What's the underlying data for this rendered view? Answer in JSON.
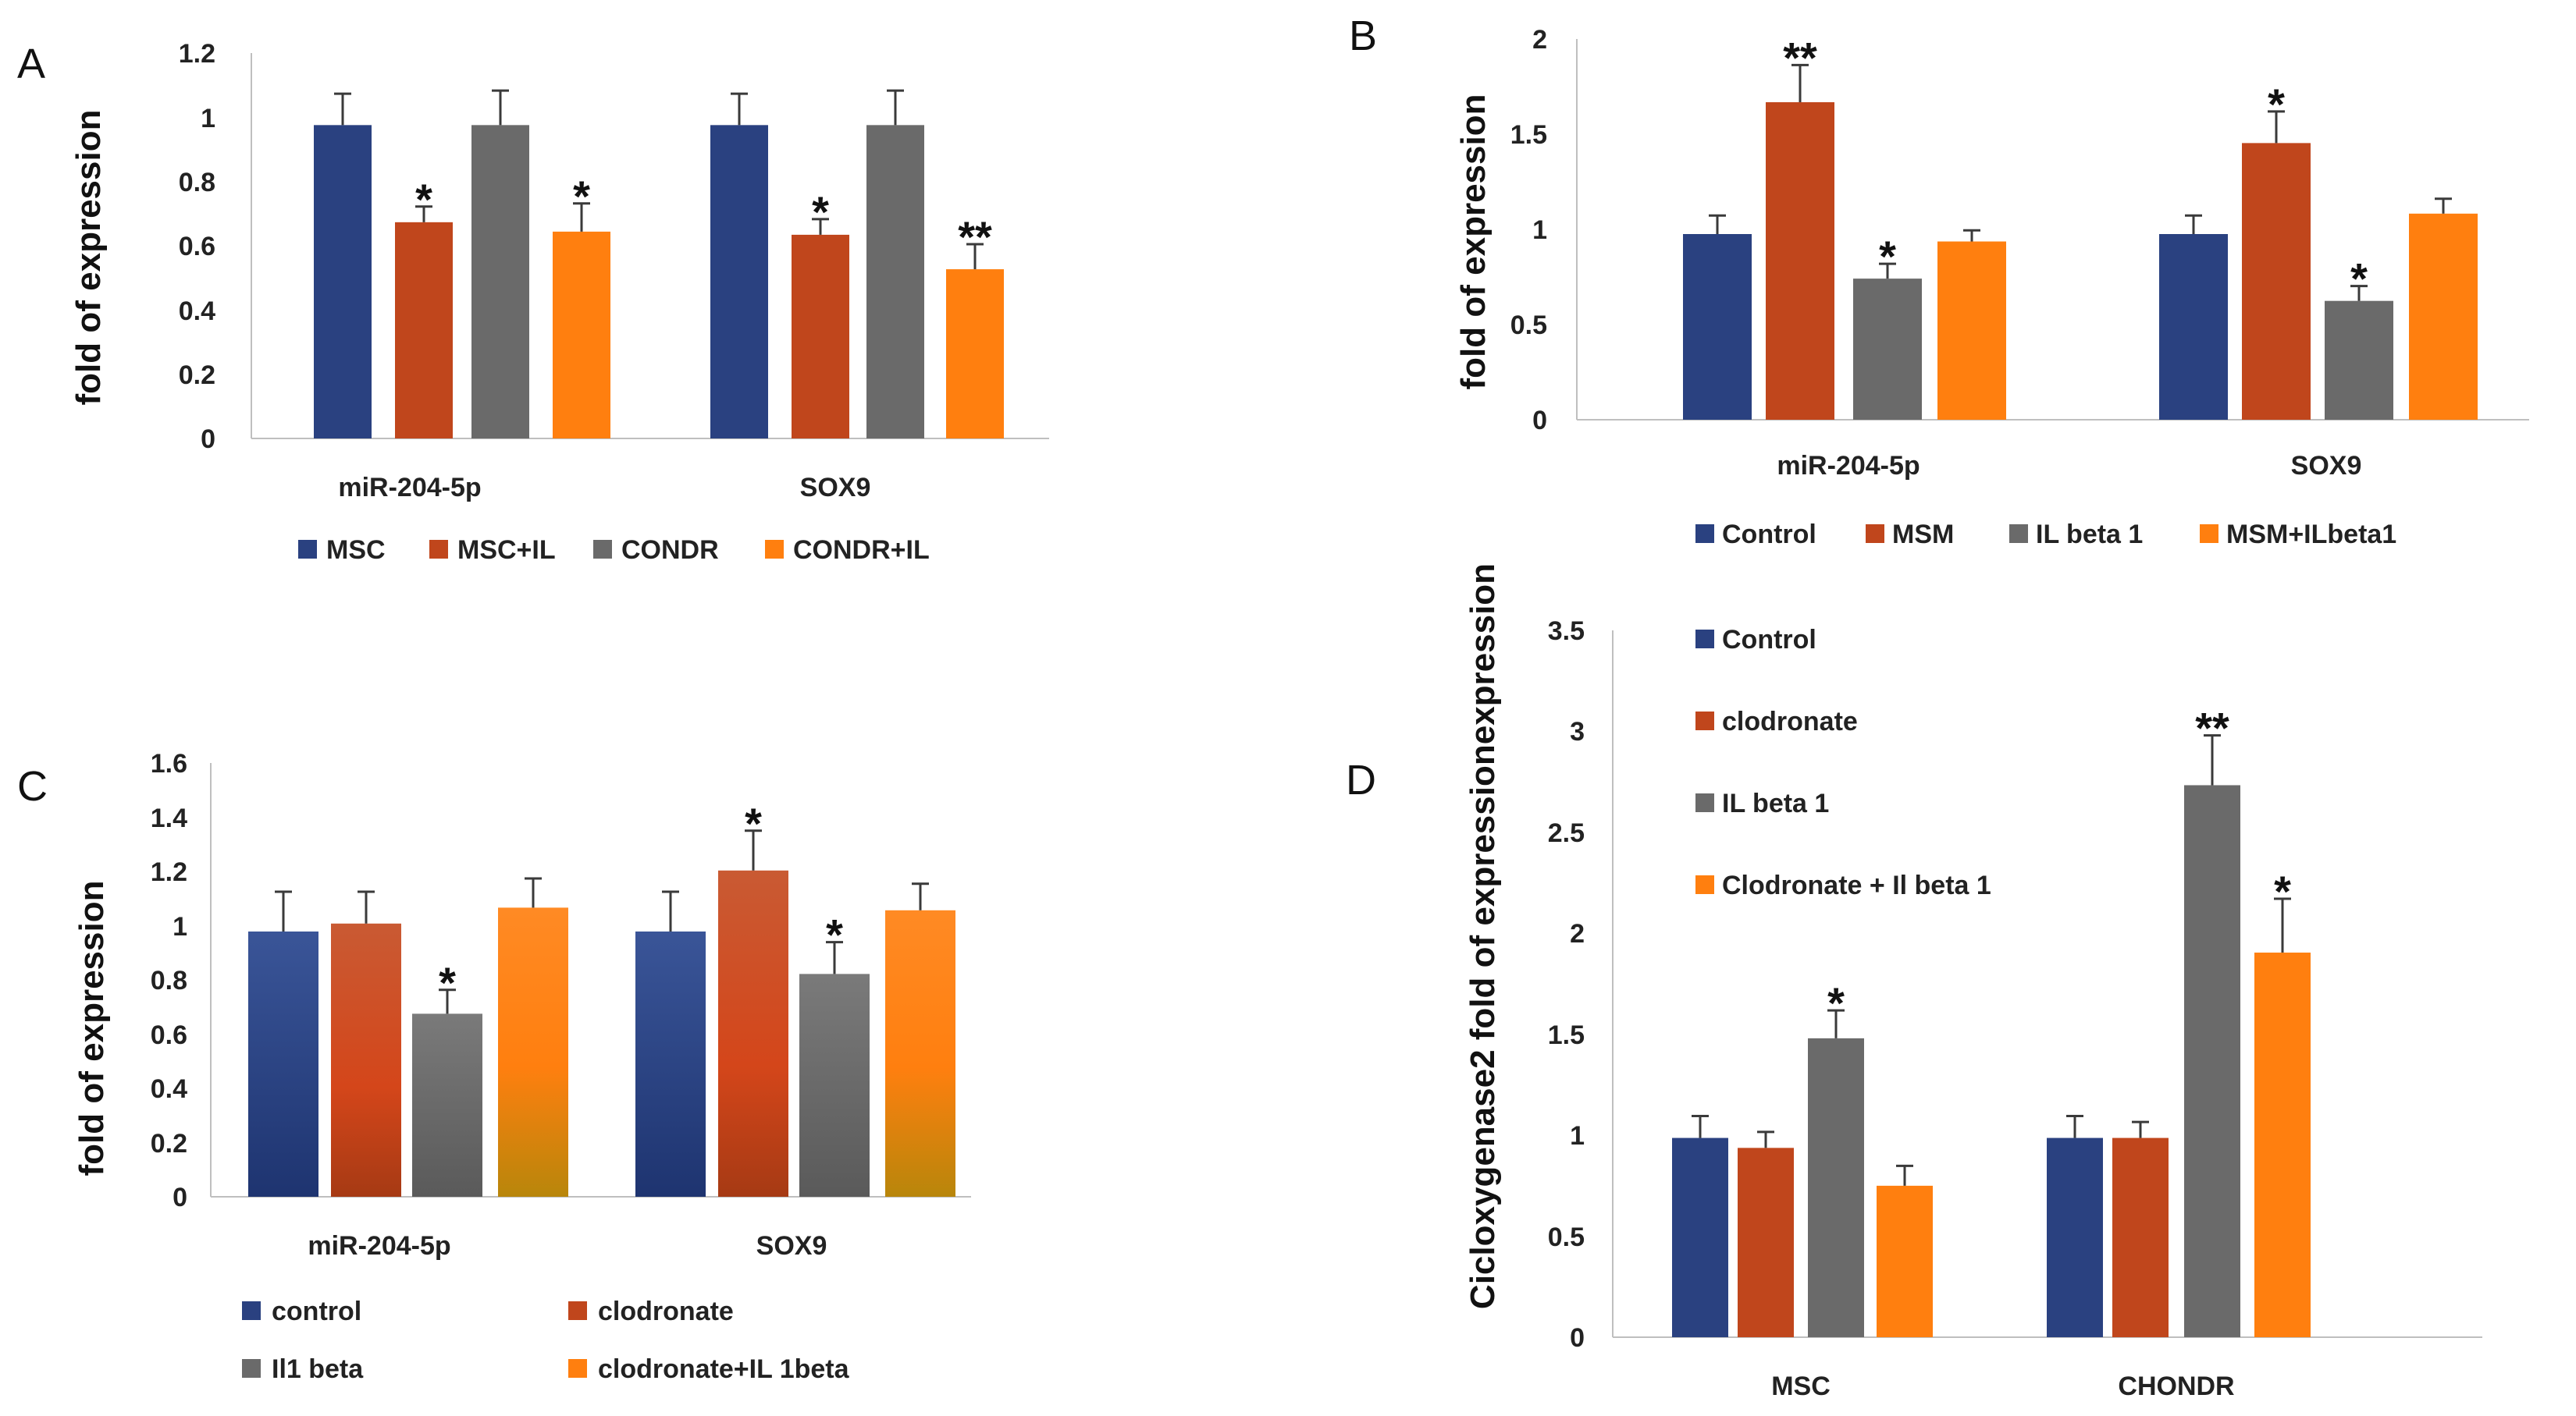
{
  "figure": {
    "colors": {
      "blue": "#2a4180",
      "rust": "#c0461c",
      "gray": "#6a6a6a",
      "orange": "#ff7f0f",
      "axis": "#bfbfbf",
      "errorbar": "#3a3a3a"
    }
  },
  "chart_data": [
    {
      "panel": "A",
      "type": "bar",
      "ylabel": "fold of expression",
      "ylim": [
        0,
        1.2
      ],
      "yticks": [
        "0",
        "0.2",
        "0.4",
        "0.6",
        "0.8",
        "1",
        "1.2"
      ],
      "tick_values": [
        0,
        0.2,
        0.4,
        0.6,
        0.8,
        1,
        1.2
      ],
      "categories": [
        "miR-204-5p",
        "SOX9"
      ],
      "series": [
        {
          "name": "MSC",
          "color": "#2a4180",
          "values": [
            1.0,
            1.0
          ],
          "errors": [
            0.1,
            0.1
          ],
          "sig": [
            "",
            ""
          ]
        },
        {
          "name": "MSC+IL",
          "color": "#c0461c",
          "values": [
            0.69,
            0.65
          ],
          "errors": [
            0.05,
            0.05
          ],
          "sig": [
            "*",
            "*"
          ]
        },
        {
          "name": "CONDR",
          "color": "#6a6a6a",
          "values": [
            1.0,
            1.0
          ],
          "errors": [
            0.11,
            0.11
          ],
          "sig": [
            "",
            ""
          ]
        },
        {
          "name": "CONDR+IL",
          "color": "#ff7f0f",
          "values": [
            0.66,
            0.54
          ],
          "errors": [
            0.09,
            0.08
          ],
          "sig": [
            "*",
            "**"
          ]
        }
      ],
      "legend_position": "bottom"
    },
    {
      "panel": "B",
      "type": "bar",
      "ylabel": "fold of expression",
      "ylim": [
        0,
        2
      ],
      "yticks": [
        "0",
        "0.5",
        "1",
        "1.5",
        "2"
      ],
      "tick_values": [
        0,
        0.5,
        1,
        1.5,
        2
      ],
      "categories": [
        "miR-204-5p",
        "SOX9"
      ],
      "series": [
        {
          "name": "Control",
          "color": "#2a4180",
          "values": [
            1.0,
            1.0
          ],
          "errors": [
            0.1,
            0.1
          ],
          "sig": [
            "",
            ""
          ]
        },
        {
          "name": "MSM",
          "color": "#c0461c",
          "values": [
            1.71,
            1.49
          ],
          "errors": [
            0.2,
            0.17
          ],
          "sig": [
            "**",
            "*"
          ]
        },
        {
          "name": "IL beta 1",
          "color": "#6a6a6a",
          "values": [
            0.76,
            0.64
          ],
          "errors": [
            0.08,
            0.08
          ],
          "sig": [
            "*",
            "*"
          ]
        },
        {
          "name": "MSM+ILbeta1",
          "color": "#ff7f0f",
          "values": [
            0.96,
            1.11
          ],
          "errors": [
            0.06,
            0.08
          ],
          "sig": [
            "",
            ""
          ]
        }
      ],
      "legend_position": "bottom"
    },
    {
      "panel": "C",
      "type": "bar",
      "ylabel": "fold of expression",
      "ylim": [
        0,
        1.6
      ],
      "yticks": [
        "0",
        "0.2",
        "0.4",
        "0.6",
        "0.8",
        "1",
        "1.2",
        "1.4",
        "1.6"
      ],
      "tick_values": [
        0,
        0.2,
        0.4,
        0.6,
        0.8,
        1,
        1.2,
        1.4,
        1.6
      ],
      "categories": [
        "miR-204-5p",
        "SOX9"
      ],
      "series": [
        {
          "name": "control",
          "color": "#2a4180",
          "values": [
            1.0,
            1.0
          ],
          "errors": [
            0.15,
            0.15
          ],
          "sig": [
            "",
            ""
          ]
        },
        {
          "name": "clodronate",
          "color": "#c0461c",
          "values": [
            1.03,
            1.23
          ],
          "errors": [
            0.12,
            0.15
          ],
          "sig": [
            "",
            "*"
          ]
        },
        {
          "name": "Il1 beta",
          "color": "#6a6a6a",
          "values": [
            0.69,
            0.84
          ],
          "errors": [
            0.09,
            0.12
          ],
          "sig": [
            "*",
            "*"
          ]
        },
        {
          "name": "clodronate+IL 1beta",
          "color": "#ff7f0f",
          "values": [
            1.09,
            1.08
          ],
          "errors": [
            0.11,
            0.1
          ],
          "sig": [
            "",
            ""
          ]
        }
      ],
      "legend_position": "bottom"
    },
    {
      "panel": "D",
      "type": "bar",
      "ylabel": "Cicloxygenase2 fold of expressionexpression",
      "ylim": [
        0,
        3.5
      ],
      "yticks": [
        "0",
        "0.5",
        "1",
        "1.5",
        "2",
        "2.5",
        "3",
        "3.5"
      ],
      "tick_values": [
        0,
        0.5,
        1,
        1.5,
        2,
        2.5,
        3,
        3.5
      ],
      "categories": [
        "MSC",
        "CHONDR"
      ],
      "series": [
        {
          "name": "Control",
          "color": "#2a4180",
          "values": [
            1.0,
            1.0
          ],
          "errors": [
            0.11,
            0.11
          ],
          "sig": [
            "",
            ""
          ]
        },
        {
          "name": "clodronate",
          "color": "#c0461c",
          "values": [
            0.95,
            1.0
          ],
          "errors": [
            0.08,
            0.08
          ],
          "sig": [
            "",
            ""
          ]
        },
        {
          "name": "IL beta 1",
          "color": "#6a6a6a",
          "values": [
            1.5,
            2.77
          ],
          "errors": [
            0.14,
            0.25
          ],
          "sig": [
            "*",
            "**"
          ]
        },
        {
          "name": "Clodronate + Il beta 1",
          "color": "#ff7f0f",
          "values": [
            0.76,
            1.93
          ],
          "errors": [
            0.1,
            0.27
          ],
          "sig": [
            "",
            "*"
          ]
        }
      ],
      "legend_position": "top-left"
    }
  ]
}
